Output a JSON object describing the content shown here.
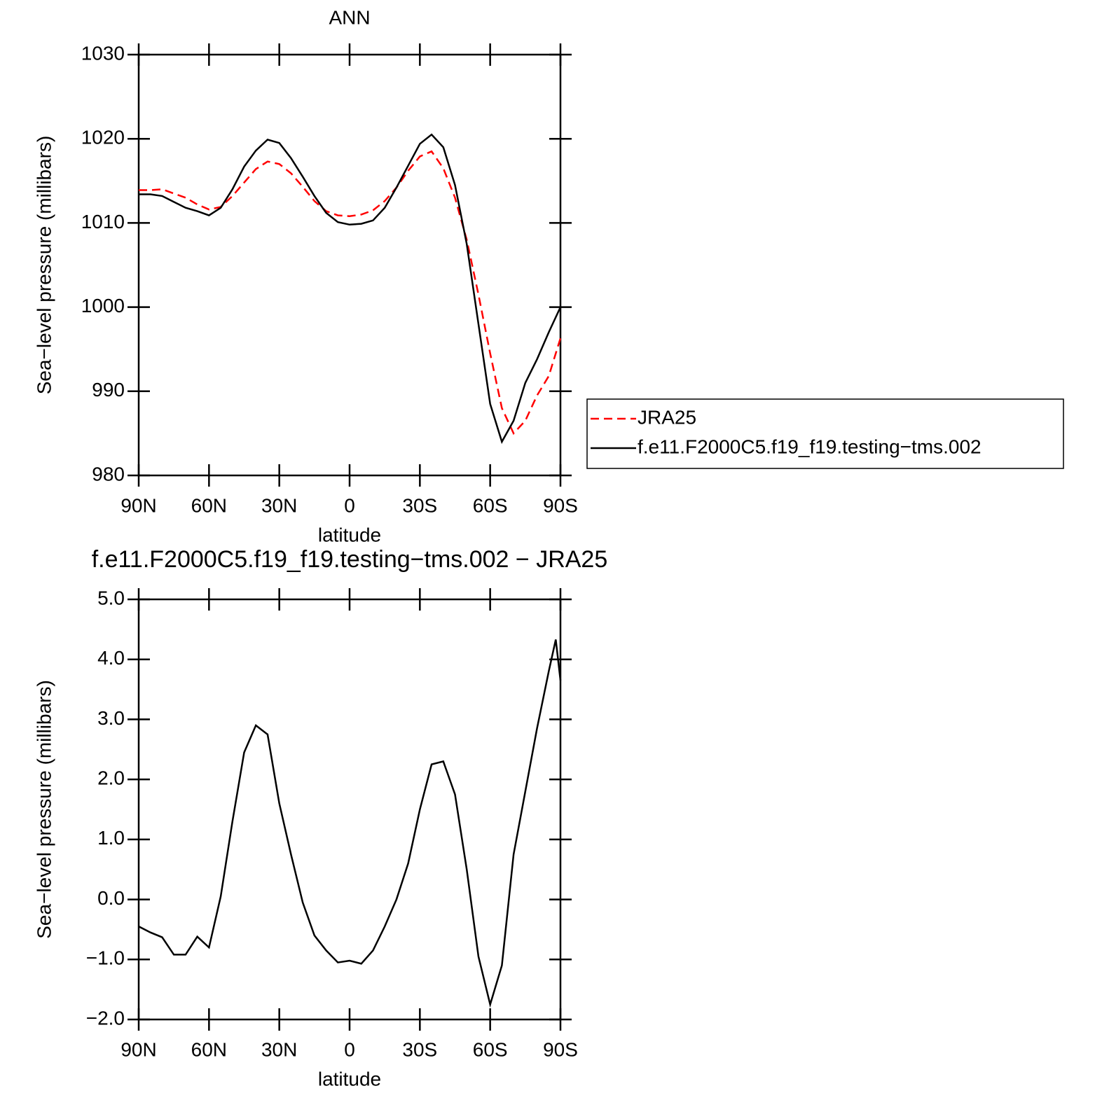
{
  "chart_data": [
    {
      "type": "line",
      "title": "ANN",
      "xlabel": "latitude",
      "ylabel": "Sea−level pressure (millibars)",
      "x": [
        90,
        85,
        80,
        75,
        70,
        65,
        60,
        55,
        50,
        45,
        40,
        35,
        30,
        25,
        20,
        15,
        10,
        5,
        0,
        -5,
        -10,
        -15,
        -20,
        -25,
        -30,
        -35,
        -40,
        -45,
        -50,
        -55,
        -60,
        -65,
        -70,
        -75,
        -80,
        -85,
        -90
      ],
      "series": [
        {
          "name": "JRA25",
          "color": "#ff0000",
          "line_style": "dashed",
          "values": [
            1013.9,
            1013.9,
            1014.0,
            1013.5,
            1013.0,
            1012.2,
            1011.6,
            1011.9,
            1013.2,
            1014.8,
            1016.4,
            1017.3,
            1017.0,
            1015.9,
            1014.3,
            1012.6,
            1011.4,
            1010.9,
            1010.8,
            1011.0,
            1011.5,
            1012.6,
            1014.2,
            1016.2,
            1017.9,
            1018.5,
            1016.5,
            1013.0,
            1008.0,
            1001.5,
            994.5,
            988.0,
            985.0,
            986.5,
            989.5,
            991.8,
            996.3
          ]
        },
        {
          "name": "f.e11.F2000C5.f19_f19.testing−tms.002",
          "color": "#000000",
          "line_style": "solid",
          "values": [
            1013.4,
            1013.4,
            1013.2,
            1012.5,
            1011.8,
            1011.4,
            1010.9,
            1011.8,
            1014.0,
            1016.7,
            1018.6,
            1019.9,
            1019.5,
            1017.7,
            1015.5,
            1013.2,
            1011.2,
            1010.1,
            1009.8,
            1009.9,
            1010.3,
            1011.8,
            1014.2,
            1016.8,
            1019.4,
            1020.5,
            1019.0,
            1014.5,
            1007.5,
            998.0,
            988.5,
            984.0,
            986.5,
            991.0,
            993.8,
            997.0,
            1000.0
          ]
        }
      ],
      "xlim": [
        90,
        -90
      ],
      "xticks": [
        {
          "value": 90,
          "label": "90N"
        },
        {
          "value": 60,
          "label": "60N"
        },
        {
          "value": 30,
          "label": "30N"
        },
        0,
        {
          "value": -30,
          "label": "30S"
        },
        {
          "value": -60,
          "label": "60S"
        },
        {
          "value": -90,
          "label": "90S"
        }
      ],
      "ylim": [
        980,
        1030
      ],
      "yticks": [
        980,
        990,
        1000,
        1010,
        1020,
        1030
      ],
      "legend": "outside-right"
    },
    {
      "type": "line",
      "title": "f.e11.F2000C5.f19_f19.testing−tms.002 − JRA25",
      "xlabel": "latitude",
      "ylabel": "Sea−level pressure (millibars)",
      "x": [
        90,
        85,
        80,
        75,
        70,
        65,
        60,
        55,
        50,
        45,
        40,
        35,
        30,
        25,
        20,
        15,
        10,
        5,
        0,
        -5,
        -10,
        -15,
        -20,
        -25,
        -30,
        -35,
        -40,
        -45,
        -50,
        -55,
        -60,
        -65,
        -70,
        -75,
        -80,
        -85,
        -88,
        -90
      ],
      "series": [
        {
          "color": "#000000",
          "line_style": "solid",
          "values": [
            -0.45,
            -0.55,
            -0.63,
            -0.92,
            -0.92,
            -0.62,
            -0.8,
            0.05,
            1.3,
            2.45,
            2.9,
            2.75,
            1.6,
            0.75,
            -0.05,
            -0.6,
            -0.85,
            -1.05,
            -1.02,
            -1.07,
            -0.85,
            -0.45,
            0.0,
            0.6,
            1.5,
            2.25,
            2.3,
            1.75,
            0.5,
            -0.95,
            -1.75,
            -1.1,
            0.75,
            1.8,
            2.85,
            3.8,
            4.33,
            3.65
          ]
        }
      ],
      "xlim": [
        90,
        -90
      ],
      "xticks": [
        {
          "value": 90,
          "label": "90N"
        },
        {
          "value": 60,
          "label": "60N"
        },
        {
          "value": 30,
          "label": "30N"
        },
        0,
        {
          "value": -30,
          "label": "30S"
        },
        {
          "value": -60,
          "label": "60S"
        },
        {
          "value": -90,
          "label": "90S"
        }
      ],
      "ylim": [
        -2,
        5
      ],
      "yticks": [
        {
          "value": -2,
          "label": "−2.0"
        },
        {
          "value": -1,
          "label": "−1.0"
        },
        {
          "value": 0,
          "label": "0.0"
        },
        {
          "value": 1,
          "label": "1.0"
        },
        {
          "value": 2,
          "label": "2.0"
        },
        {
          "value": 3,
          "label": "3.0"
        },
        {
          "value": 4,
          "label": "4.0"
        },
        {
          "value": 5,
          "label": "5.0"
        }
      ]
    }
  ]
}
